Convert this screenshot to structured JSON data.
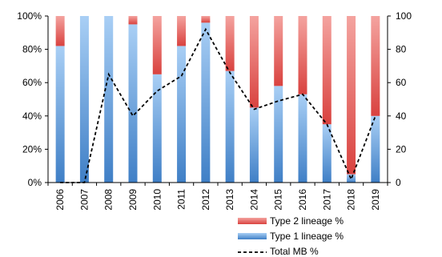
{
  "chart_data": {
    "type": "bar",
    "stacked": true,
    "categories": [
      "2006",
      "2007",
      "2008",
      "2009",
      "2010",
      "2011",
      "2012",
      "2013",
      "2014",
      "2015",
      "2016",
      "2017",
      "2018",
      "2019"
    ],
    "series": [
      {
        "name": "Type 1 lineage %",
        "values": [
          82,
          100,
          100,
          95,
          65,
          82,
          96,
          67,
          45,
          58,
          53,
          35,
          5,
          40
        ],
        "color": "#5b9bd5"
      },
      {
        "name": "Type 2 lineage %",
        "values": [
          18,
          0,
          0,
          5,
          35,
          18,
          4,
          33,
          55,
          42,
          47,
          65,
          95,
          60
        ],
        "color": "#e25a58"
      }
    ],
    "line_series": {
      "name": "Total MB %",
      "values": [
        0,
        0,
        65,
        40,
        55,
        64,
        92,
        66,
        44,
        49,
        53,
        35,
        2,
        40
      ],
      "style": "dashed",
      "color": "#000000"
    },
    "y_left": {
      "ticks": [
        "0%",
        "20%",
        "40%",
        "60%",
        "80%",
        "100%"
      ],
      "range": [
        0,
        100
      ]
    },
    "y_right": {
      "ticks": [
        "0",
        "20",
        "40",
        "60",
        "80",
        "100"
      ],
      "range": [
        0,
        100
      ]
    },
    "legend_position": "bottom-right",
    "grid": false
  }
}
